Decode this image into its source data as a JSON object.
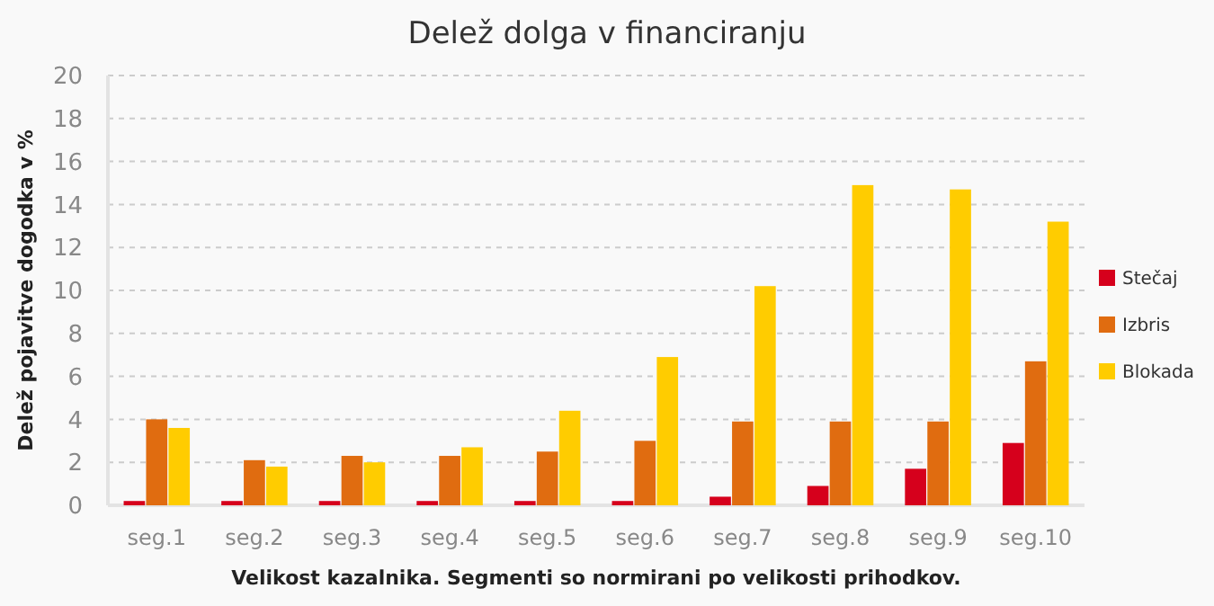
{
  "chart_data": {
    "type": "bar",
    "title": "Delež dolga v financiranju",
    "xlabel": "Velikost kazalnika. Segmenti so normirani po velikosti prihodkov.",
    "ylabel": "Delež pojavitve dogodka v %",
    "categories": [
      "seg.1",
      "seg.2",
      "seg.3",
      "seg.4",
      "seg.5",
      "seg.6",
      "seg.7",
      "seg.8",
      "seg.9",
      "seg.10"
    ],
    "series": [
      {
        "name": "Stečaj",
        "color": "#d6001c",
        "values": [
          0.2,
          0.2,
          0.2,
          0.2,
          0.2,
          0.2,
          0.4,
          0.9,
          1.7,
          2.9
        ]
      },
      {
        "name": "Izbris",
        "color": "#e06c10",
        "values": [
          4.0,
          2.1,
          2.3,
          2.3,
          2.5,
          3.0,
          3.9,
          3.9,
          3.9,
          6.7
        ]
      },
      {
        "name": "Blokada",
        "color": "#ffcc00",
        "values": [
          3.6,
          1.8,
          2.0,
          2.7,
          4.4,
          6.9,
          10.2,
          14.9,
          14.7,
          13.2
        ]
      }
    ],
    "ylim": [
      0,
      20
    ],
    "yticks": [
      0,
      2,
      4,
      6,
      8,
      10,
      12,
      14,
      16,
      18,
      20
    ],
    "grid": "y",
    "legend": "right"
  }
}
